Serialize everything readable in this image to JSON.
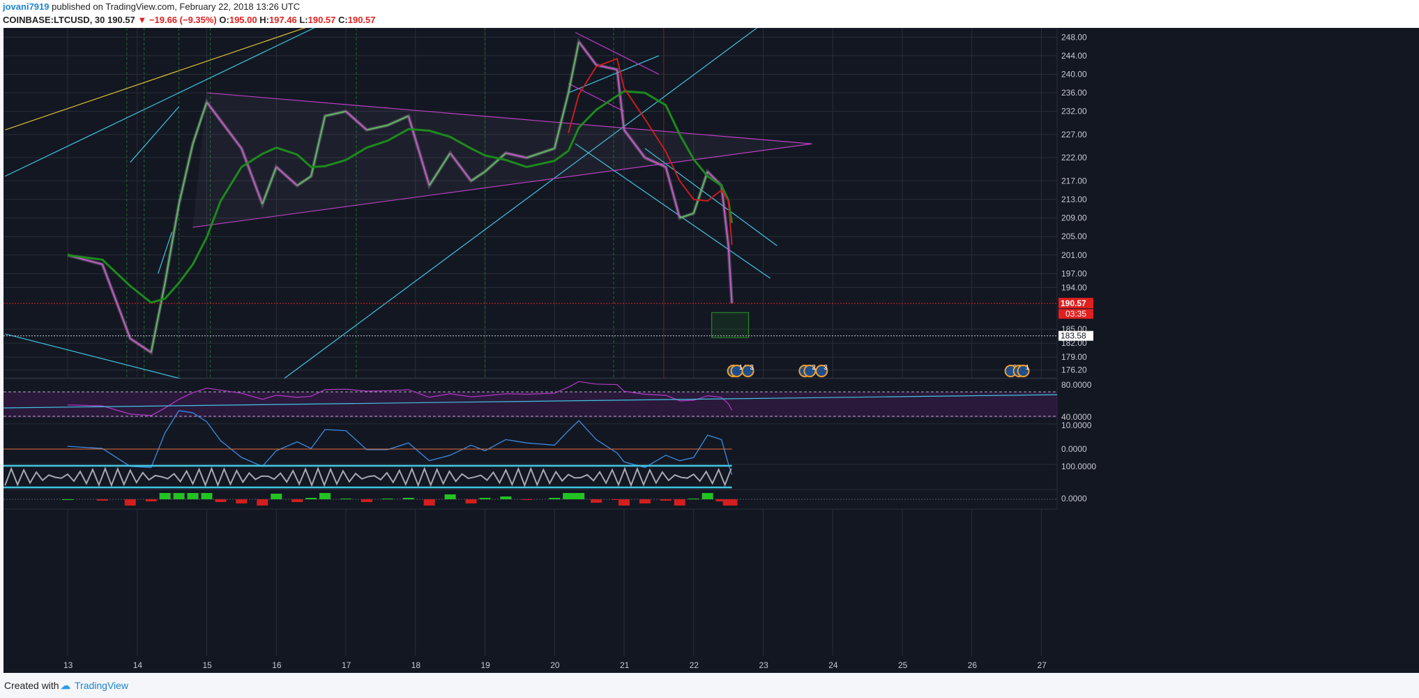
{
  "header": {
    "user": "jovani7919",
    "published": " published on TradingView.com, February 22, 2018 13:26 UTC",
    "symbol": "COINBASE:LTCUSD, 30",
    "last": "190.57",
    "change": "−19.66 (−9.35%)",
    "o_label": "O:",
    "o_val": "195.00",
    "h_label": "H:",
    "h_val": "197.46",
    "l_label": "L:",
    "l_val": "190.57",
    "c_label": "C:",
    "c_val": "190.57"
  },
  "footer": {
    "created": "Created with",
    "brand": "TradingView"
  },
  "colors": {
    "background": "#131722",
    "up_candle": "#5fb35f",
    "down_candle": "#c257c2",
    "triangle_line": "#c03cc8",
    "trend_cyan": "#3fc6e0",
    "trend_yellow": "#d8c235",
    "ma_green": "#1d8a1d",
    "ma_red": "#c81d1d",
    "price_label": "#e02020"
  },
  "chart_data": {
    "type": "candlestick",
    "symbol": "COINBASE:LTCUSD",
    "interval": "30",
    "x_ticks": [
      "13",
      "14",
      "15",
      "16",
      "17",
      "18",
      "19",
      "20",
      "21",
      "22",
      "23",
      "24",
      "25",
      "26",
      "27"
    ],
    "y_ticks": [
      "248.00",
      "244.00",
      "240.00",
      "236.00",
      "232.00",
      "227.00",
      "222.00",
      "217.00",
      "213.00",
      "209.00",
      "205.00",
      "201.00",
      "197.00",
      "194.00",
      "185.00",
      "182.00",
      "179.00",
      "176.20"
    ],
    "ylim": [
      174.5,
      250
    ],
    "last_price_label": "190.57",
    "countdown_label": "03:35",
    "marker_price_label": "183.58",
    "last_price": 190.57,
    "marker_price": 183.58,
    "price_path": [
      [
        13.0,
        201
      ],
      [
        13.5,
        199
      ],
      [
        13.9,
        183
      ],
      [
        14.2,
        180
      ],
      [
        14.4,
        195
      ],
      [
        14.6,
        212
      ],
      [
        14.8,
        225
      ],
      [
        15.0,
        234
      ],
      [
        15.2,
        230
      ],
      [
        15.5,
        224
      ],
      [
        15.8,
        212
      ],
      [
        16.0,
        220
      ],
      [
        16.3,
        216
      ],
      [
        16.5,
        218
      ],
      [
        16.7,
        231
      ],
      [
        17.0,
        232
      ],
      [
        17.3,
        228
      ],
      [
        17.6,
        229
      ],
      [
        17.9,
        231
      ],
      [
        18.2,
        216
      ],
      [
        18.5,
        223
      ],
      [
        18.8,
        217
      ],
      [
        19.0,
        219
      ],
      [
        19.3,
        223
      ],
      [
        19.6,
        222
      ],
      [
        20.0,
        224
      ],
      [
        20.2,
        236
      ],
      [
        20.35,
        247
      ],
      [
        20.6,
        242
      ],
      [
        20.9,
        241
      ],
      [
        21.0,
        228
      ],
      [
        21.3,
        222
      ],
      [
        21.6,
        220
      ],
      [
        21.8,
        209
      ],
      [
        22.0,
        210
      ],
      [
        22.2,
        219
      ],
      [
        22.4,
        216
      ],
      [
        22.5,
        203
      ],
      [
        22.55,
        190.57
      ]
    ],
    "indicators": [
      {
        "type": "rsi",
        "ticks": [
          "80.0000",
          "40.0000"
        ]
      },
      {
        "type": "macd",
        "ticks": [
          "10.0000",
          "0.0000"
        ]
      },
      {
        "type": "stochastic",
        "ticks": [
          "100.0000"
        ]
      },
      {
        "type": "histogram",
        "ticks": [
          "0.0000"
        ]
      }
    ],
    "event_markers": [
      {
        "x": 22.57,
        "label": "3"
      },
      {
        "x": 22.62,
        "label": "14"
      },
      {
        "x": 22.78,
        "label": "3"
      },
      {
        "x": 23.6,
        "label": "2"
      },
      {
        "x": 23.67,
        "label": "2"
      },
      {
        "x": 23.84,
        "label": "3"
      },
      {
        "x": 26.56,
        "label": "2"
      },
      {
        "x": 26.68,
        "label": "2"
      },
      {
        "x": 26.74,
        "label": "1"
      }
    ]
  }
}
